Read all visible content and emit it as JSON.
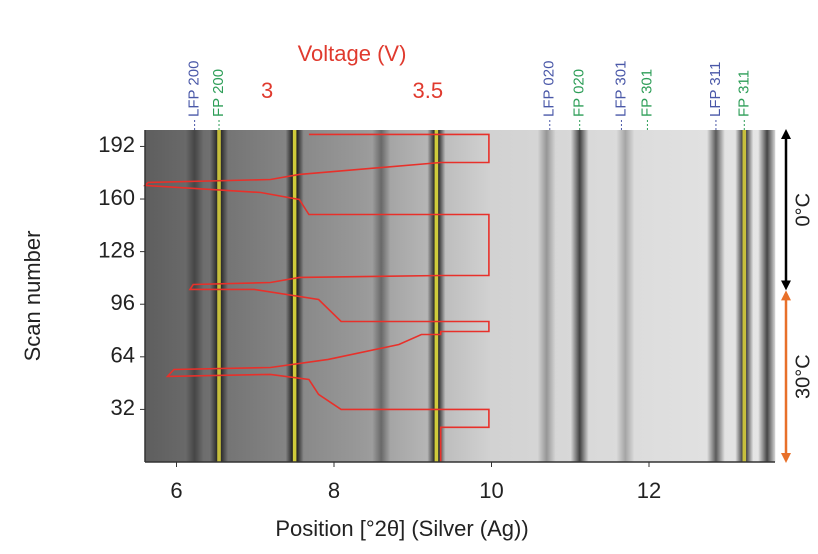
{
  "chart_data": {
    "type": "heatmap",
    "x_label": "Position [°2θ] (Silver (Ag))",
    "y_label": "Scan number",
    "x2_label": "Voltage (V)",
    "x2_color": "#e03a2e",
    "xlim": [
      5.6,
      13.6
    ],
    "xticks": [
      6,
      8,
      10,
      12
    ],
    "ylim": [
      0,
      202
    ],
    "yticks": [
      32,
      64,
      96,
      128,
      160,
      192
    ],
    "x2lim": [
      2.62,
      4.58
    ],
    "x2ticks": [
      3,
      3.5
    ],
    "bands": [
      {
        "x": 6.23,
        "intensity": 0.35
      },
      {
        "x": 6.54,
        "intensity": 0.8,
        "core": "#d8d040"
      },
      {
        "x": 7.5,
        "intensity": 1,
        "core": "#e6e040"
      },
      {
        "x": 8.6,
        "intensity": 0.35
      },
      {
        "x": 9.3,
        "intensity": 1,
        "core": "#e6e040"
      },
      {
        "x": 10.7,
        "intensity": 0.3
      },
      {
        "x": 11.12,
        "intensity": 0.7
      },
      {
        "x": 11.7,
        "intensity": 0.25
      },
      {
        "x": 12.85,
        "intensity": 0.6
      },
      {
        "x": 13.21,
        "intensity": 0.9,
        "core": "#d8d040"
      },
      {
        "x": 13.5,
        "intensity": 0.7
      }
    ],
    "peaks": [
      {
        "label": "LFP 200",
        "x": 6.23,
        "color": "#4a58a8"
      },
      {
        "label": "FP 200",
        "x": 6.54,
        "color": "#2e9e58"
      },
      {
        "label": "LFP 020",
        "x": 10.74,
        "color": "#4a58a8"
      },
      {
        "label": "FP 020",
        "x": 11.12,
        "color": "#2e9e58"
      },
      {
        "label": "LFP 301",
        "x": 11.65,
        "color": "#4a58a8"
      },
      {
        "label": "FP 301",
        "x": 11.98,
        "color": "#2e9e58"
      },
      {
        "label": "LFP 311",
        "x": 12.85,
        "color": "#4a58a8"
      },
      {
        "label": "FP 311",
        "x": 13.21,
        "color": "#2e9e58"
      }
    ],
    "voltage": {
      "color": "#e8302a",
      "x": [
        3.54,
        3.54,
        3.69,
        3.69,
        3.23,
        3.16,
        3.13,
        3.01,
        2.69,
        2.71,
        3.01,
        3.19,
        3.41,
        3.48,
        3.54,
        3.54,
        3.69,
        3.69,
        3.23,
        3.16,
        2.96,
        2.76,
        2.77,
        3.01,
        3.1,
        3.54,
        3.69,
        3.69,
        3.13,
        3.1,
        2.98,
        2.62,
        2.63,
        3.01,
        3.1,
        3.54,
        3.69,
        3.69,
        3.13
      ],
      "y": [
        0,
        21.1,
        21.1,
        32,
        32,
        41.1,
        50.2,
        53.3,
        52.1,
        56.3,
        57.5,
        62.4,
        71.5,
        77.6,
        77.6,
        79.4,
        79.4,
        85.5,
        85.5,
        98.9,
        105,
        105,
        108,
        109.2,
        112.3,
        113.5,
        113.5,
        150.6,
        150.6,
        159.7,
        164,
        168.3,
        170.1,
        171.9,
        175,
        182.2,
        182.2,
        199.3,
        199.3
      ]
    },
    "temperatures": [
      {
        "label": "0°C",
        "from": 105,
        "to": 202,
        "color": "#000000"
      },
      {
        "label": "30°C",
        "from": 0,
        "to": 103.8,
        "color": "#e8702a"
      }
    ]
  }
}
